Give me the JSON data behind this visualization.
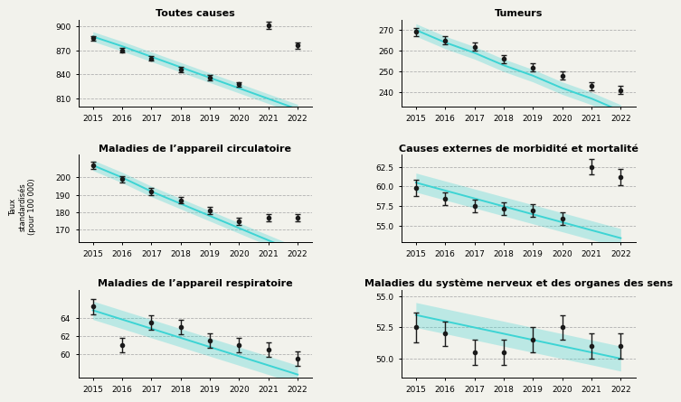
{
  "years": [
    2015,
    2016,
    2017,
    2018,
    2019,
    2020,
    2021,
    2022
  ],
  "subplot_data": [
    {
      "title": "Toutes causes",
      "obs_y": [
        885,
        870,
        860,
        846,
        836,
        828,
        876
      ],
      "obs_x": [
        2015,
        2016,
        2017,
        2018,
        2019,
        2020,
        2022
      ],
      "obs_err": [
        3,
        3,
        3,
        3,
        3,
        3,
        4
      ],
      "extra_points": [
        [
          2021,
          901,
          4
        ]
      ],
      "trend_y": [
        887,
        875,
        862,
        849,
        836,
        823,
        810,
        797
      ],
      "trend_ci": 6,
      "ylim": [
        800,
        908
      ],
      "yticks": [
        810,
        840,
        870,
        900
      ]
    },
    {
      "title": "Tumeurs",
      "obs_y": [
        269,
        265,
        262,
        256,
        252,
        248,
        243,
        241
      ],
      "obs_x": [
        2015,
        2016,
        2017,
        2018,
        2019,
        2020,
        2021,
        2022
      ],
      "obs_err": [
        2,
        2,
        2,
        2,
        2,
        2,
        2,
        2
      ],
      "extra_points": [],
      "trend_y": [
        270,
        264,
        259,
        253,
        248,
        242,
        237,
        231
      ],
      "trend_ci": 3,
      "ylim": [
        233,
        275
      ],
      "yticks": [
        240,
        250,
        260,
        270
      ]
    },
    {
      "title": "Maladies de l’appareil circulatoire",
      "obs_y": [
        207,
        199,
        192,
        187,
        181,
        175,
        177,
        177
      ],
      "obs_x": [
        2015,
        2016,
        2017,
        2018,
        2019,
        2020,
        2021,
        2022
      ],
      "obs_err": [
        2,
        2,
        2,
        2,
        2,
        2,
        2,
        2
      ],
      "extra_points": [],
      "trend_y": [
        207,
        200,
        192,
        185,
        178,
        171,
        164,
        157
      ],
      "trend_ci": 3,
      "ylim": [
        163,
        213
      ],
      "yticks": [
        170,
        180,
        190,
        200
      ]
    },
    {
      "title": "Causes externes de morbidité et mortalité",
      "obs_y": [
        59.8,
        58.5,
        57.5,
        57.2,
        57.0,
        56.0,
        61.2
      ],
      "obs_x": [
        2015,
        2016,
        2017,
        2018,
        2019,
        2020,
        2022
      ],
      "obs_err": [
        1.0,
        0.8,
        0.8,
        0.8,
        0.8,
        0.8,
        1.0
      ],
      "extra_points": [
        [
          2021,
          62.5,
          1.0
        ]
      ],
      "trend_y": [
        60.5,
        59.5,
        58.5,
        57.5,
        56.5,
        55.5,
        54.5,
        53.5
      ],
      "trend_ci": 1.2,
      "ylim": [
        53.0,
        64.0
      ],
      "yticks": [
        55.0,
        57.5,
        60.0,
        62.5
      ]
    },
    {
      "title": "Maladies de l’appareil respiratoire",
      "obs_y": [
        65.2,
        61.0,
        63.5,
        63.0,
        61.5,
        61.0,
        60.5,
        59.5
      ],
      "obs_x": [
        2015,
        2016,
        2017,
        2018,
        2019,
        2020,
        2021,
        2022
      ],
      "obs_err": [
        0.8,
        0.8,
        0.8,
        0.8,
        0.8,
        0.8,
        0.8,
        0.8
      ],
      "extra_points": [],
      "trend_y": [
        64.8,
        63.8,
        62.8,
        61.8,
        60.8,
        59.8,
        58.8,
        57.8
      ],
      "trend_ci": 1.0,
      "ylim": [
        57.5,
        67.0
      ],
      "yticks": [
        60,
        62,
        64
      ]
    },
    {
      "title": "Maladies du système nerveux et des organes des sens",
      "obs_y": [
        52.5,
        52.0,
        50.5,
        50.5,
        51.5,
        52.5,
        51.0,
        51.0
      ],
      "obs_x": [
        2015,
        2016,
        2017,
        2018,
        2019,
        2020,
        2021,
        2022
      ],
      "obs_err": [
        1.2,
        1.0,
        1.0,
        1.0,
        1.0,
        1.0,
        1.0,
        1.0
      ],
      "extra_points": [],
      "trend_y": [
        53.5,
        53.0,
        52.5,
        52.0,
        51.5,
        51.0,
        50.5,
        50.0
      ],
      "trend_ci": 1.0,
      "ylim": [
        48.5,
        55.5
      ],
      "yticks": [
        50.0,
        52.5,
        55.0
      ]
    }
  ],
  "years_trend": [
    2015,
    2016,
    2017,
    2018,
    2019,
    2020,
    2021,
    2022
  ],
  "trend_color": "#3DD4D4",
  "point_color": "#1a1a1a",
  "bg_color": "#f2f2ec",
  "grid_color": "#aaaaaa",
  "ylabel": "Taux\nstandardisés\n(pour 100 000)",
  "title_fontsize": 8.0,
  "tick_fontsize": 6.5
}
